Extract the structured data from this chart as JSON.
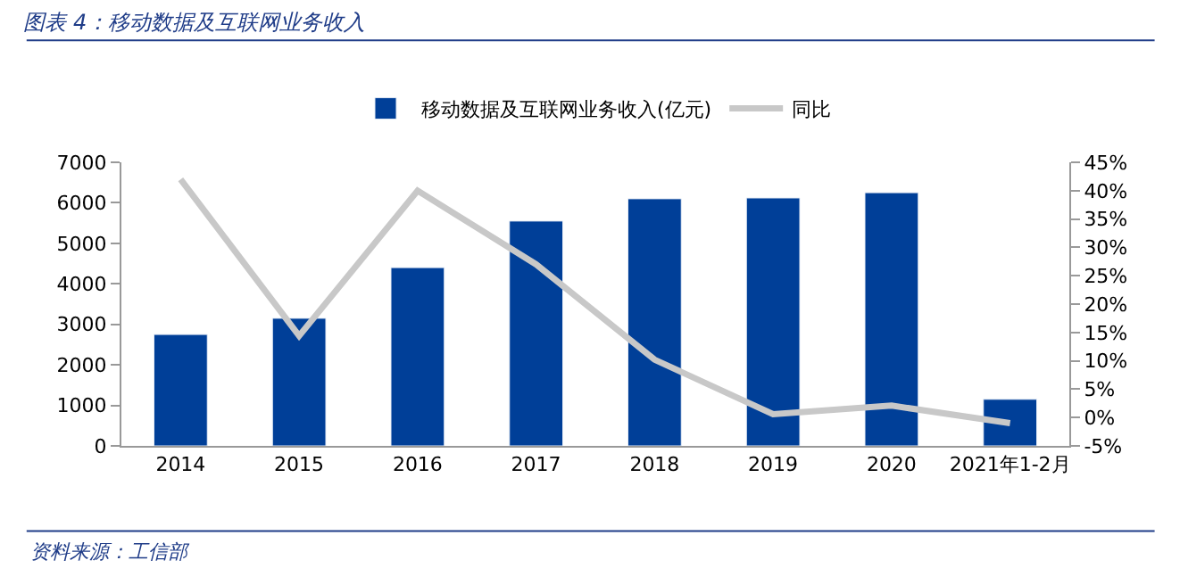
{
  "chart_data": {
    "type": "bar",
    "title": "图表 4：移动数据及互联网业务收入",
    "categories": [
      "2014",
      "2015",
      "2016",
      "2017",
      "2018",
      "2019",
      "2020",
      "2021年1-2月"
    ],
    "series": [
      {
        "name": "移动数据及互联网业务收入(亿元)",
        "color": "#003f98",
        "values": [
          2750,
          3150,
          4400,
          5550,
          6100,
          6120,
          6250,
          1150
        ]
      },
      {
        "name": "同比",
        "type": "line",
        "axis": "y2",
        "color": "#c8c8c8",
        "values": [
          42,
          14.4,
          40,
          27,
          10.2,
          0.6,
          2.1,
          -1.0
        ]
      }
    ],
    "ylim": [
      0,
      7000
    ],
    "yticks": [
      0,
      1000,
      2000,
      3000,
      4000,
      5000,
      6000,
      7000
    ],
    "y2lim": [
      -5,
      45
    ],
    "y2ticks": [
      {
        "value": -5,
        "label": "-5%"
      },
      {
        "value": 0,
        "label": "0%"
      },
      {
        "value": 5,
        "label": "5%"
      },
      {
        "value": 10,
        "label": "10%"
      },
      {
        "value": 15,
        "label": "15%"
      },
      {
        "value": 20,
        "label": "20%"
      },
      {
        "value": 25,
        "label": "25%"
      },
      {
        "value": 30,
        "label": "30%"
      },
      {
        "value": 35,
        "label": "35%"
      },
      {
        "value": 40,
        "label": "40%"
      },
      {
        "value": 45,
        "label": "45%"
      }
    ],
    "legend": "top",
    "marker": "none",
    "annotations": [
      "资料来源：工信部"
    ]
  }
}
